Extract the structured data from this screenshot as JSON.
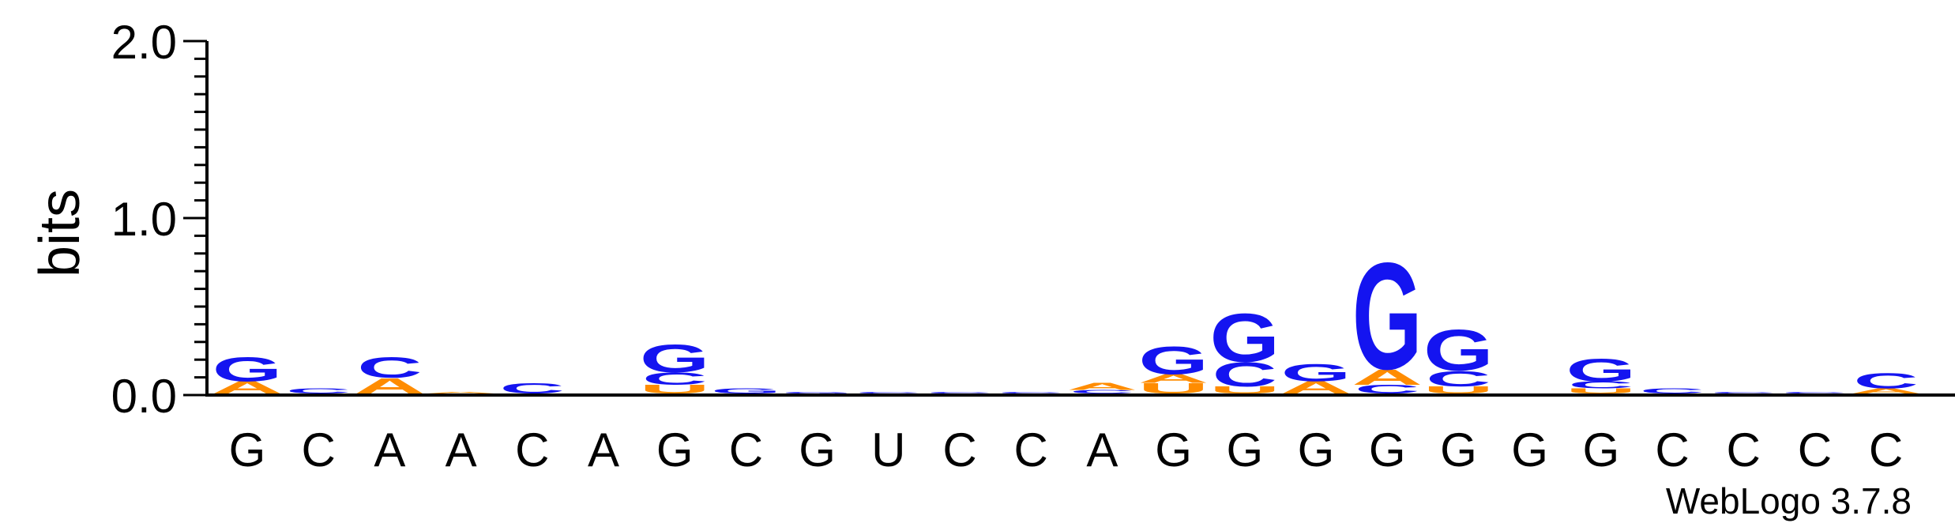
{
  "chart_data": {
    "type": "sequence-logo",
    "ylabel": "bits",
    "ylim": [
      0,
      2.0
    ],
    "y_ticks": [
      "0.0",
      "1.0",
      "2.0"
    ],
    "colors": {
      "G": "#1414f0",
      "C": "#1414f0",
      "A": "#ff8c00",
      "U": "#ff8c00"
    },
    "positions": [
      {
        "label": "G",
        "stack": [
          {
            "letter": "A",
            "bits": 0.07
          },
          {
            "letter": "G",
            "bits": 0.14
          }
        ]
      },
      {
        "label": "C",
        "stack": [
          {
            "letter": "C",
            "bits": 0.03
          }
        ]
      },
      {
        "label": "A",
        "stack": [
          {
            "letter": "A",
            "bits": 0.09
          },
          {
            "letter": "C",
            "bits": 0.12
          }
        ]
      },
      {
        "label": "A",
        "stack": [
          {
            "letter": "A",
            "bits": 0.01
          }
        ]
      },
      {
        "label": "C",
        "stack": [
          {
            "letter": "C",
            "bits": 0.06
          }
        ]
      },
      {
        "label": "A",
        "stack": []
      },
      {
        "label": "G",
        "stack": [
          {
            "letter": "U",
            "bits": 0.05
          },
          {
            "letter": "C",
            "bits": 0.07
          },
          {
            "letter": "G",
            "bits": 0.16
          }
        ]
      },
      {
        "label": "C",
        "stack": [
          {
            "letter": "G",
            "bits": 0.03
          }
        ]
      },
      {
        "label": "G",
        "stack": [
          {
            "letter": "G",
            "bits": 0.01
          }
        ]
      },
      {
        "label": "U",
        "stack": [
          {
            "letter": "C",
            "bits": 0.01
          }
        ]
      },
      {
        "label": "C",
        "stack": [
          {
            "letter": "C",
            "bits": 0.01
          }
        ]
      },
      {
        "label": "C",
        "stack": [
          {
            "letter": "C",
            "bits": 0.01
          }
        ]
      },
      {
        "label": "A",
        "stack": [
          {
            "letter": "C",
            "bits": 0.02
          },
          {
            "letter": "A",
            "bits": 0.04
          }
        ]
      },
      {
        "label": "G",
        "stack": [
          {
            "letter": "U",
            "bits": 0.06
          },
          {
            "letter": "A",
            "bits": 0.05
          },
          {
            "letter": "G",
            "bits": 0.16
          }
        ]
      },
      {
        "label": "G",
        "stack": [
          {
            "letter": "U",
            "bits": 0.04
          },
          {
            "letter": "C",
            "bits": 0.14
          },
          {
            "letter": "G",
            "bits": 0.28
          }
        ]
      },
      {
        "label": "G",
        "stack": [
          {
            "letter": "A",
            "bits": 0.07
          },
          {
            "letter": "G",
            "bits": 0.1
          }
        ]
      },
      {
        "label": "G",
        "stack": [
          {
            "letter": "C",
            "bits": 0.05
          },
          {
            "letter": "A",
            "bits": 0.09
          },
          {
            "letter": "G",
            "bits": 0.62
          }
        ]
      },
      {
        "label": "G",
        "stack": [
          {
            "letter": "U",
            "bits": 0.04
          },
          {
            "letter": "C",
            "bits": 0.09
          },
          {
            "letter": "G",
            "bits": 0.24
          }
        ]
      },
      {
        "label": "G",
        "stack": []
      },
      {
        "label": "G",
        "stack": [
          {
            "letter": "U",
            "bits": 0.03
          },
          {
            "letter": "C",
            "bits": 0.04
          },
          {
            "letter": "G",
            "bits": 0.13
          }
        ]
      },
      {
        "label": "C",
        "stack": [
          {
            "letter": "C",
            "bits": 0.03
          }
        ]
      },
      {
        "label": "C",
        "stack": [
          {
            "letter": "C",
            "bits": 0.01
          }
        ]
      },
      {
        "label": "C",
        "stack": [
          {
            "letter": "C",
            "bits": 0.01
          }
        ]
      },
      {
        "label": "C",
        "stack": [
          {
            "letter": "A",
            "bits": 0.03
          },
          {
            "letter": "C",
            "bits": 0.09
          }
        ]
      }
    ]
  },
  "credit": "WebLogo 3.7.8"
}
